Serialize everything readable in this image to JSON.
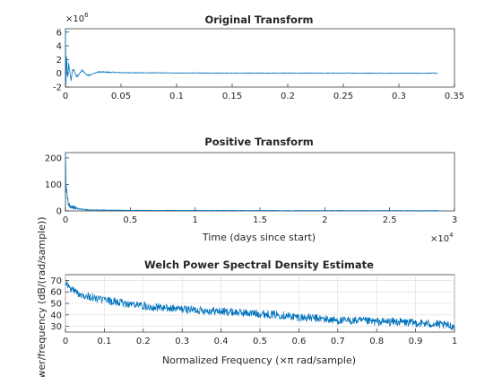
{
  "colors": {
    "line": "#0072BD",
    "axis": "#262626",
    "grid": "#dcdcdc"
  },
  "chart_data": [
    {
      "type": "line",
      "title": "Original Transform",
      "xlabel": "",
      "ylabel": "",
      "xlim": [
        0,
        0.35
      ],
      "ylim": [
        -2,
        6.5
      ],
      "xticks": [
        "0",
        "0.05",
        "0.1",
        "0.15",
        "0.2",
        "0.25",
        "0.3",
        "0.35"
      ],
      "yticks": [
        "-2",
        "0",
        "2",
        "4",
        "6"
      ],
      "ymultiplier": {
        "base": "×10",
        "exp": "6"
      },
      "grid": false,
      "series": [
        {
          "x": [
            0,
            0.0005,
            0.001,
            0.002,
            0.003,
            0.005,
            0.007,
            0.01,
            0.015,
            0.02,
            0.03,
            0.05,
            0.1,
            0.15,
            0.2,
            0.25,
            0.3,
            0.3348
          ],
          "y": [
            6.1,
            -1.9,
            2.0,
            -0.9,
            1.2,
            -0.8,
            0.7,
            -0.5,
            0.4,
            -0.3,
            0.2,
            0.1,
            0.05,
            0.04,
            0.03,
            0.03,
            0.02,
            0.02
          ]
        }
      ]
    },
    {
      "type": "line",
      "title": "Positive Transform",
      "xlabel": "Time (days since start)",
      "ylabel": "",
      "xlim": [
        0,
        30000
      ],
      "ylim": [
        0,
        220
      ],
      "xticks": [
        "0",
        "0.5",
        "1",
        "1.5",
        "2",
        "2.5",
        "3"
      ],
      "yticks": [
        "0",
        "100",
        "200"
      ],
      "xmultiplier": {
        "base": "×10",
        "exp": "4"
      },
      "grid": false,
      "series": [
        {
          "x": [
            0,
            40,
            80,
            150,
            250,
            400,
            700,
            1000,
            1500,
            2000,
            3000,
            5000,
            10000,
            15000,
            20000,
            25000,
            29000
          ],
          "y": [
            205,
            60,
            95,
            45,
            30,
            18,
            12,
            8,
            5,
            4,
            3,
            2,
            1.5,
            1.2,
            1,
            1,
            0.8
          ]
        }
      ]
    },
    {
      "type": "line",
      "title": "Welch Power Spectral Density Estimate",
      "xlabel": "Normalized Frequency  (×π rad/sample)",
      "ylabel": "Power/frequency (dB/(rad/sample))",
      "xlim": [
        0,
        1
      ],
      "ylim": [
        25,
        75
      ],
      "xticks": [
        "0",
        "0.1",
        "0.2",
        "0.3",
        "0.4",
        "0.5",
        "0.6",
        "0.7",
        "0.8",
        "0.9",
        "1"
      ],
      "yticks": [
        "30",
        "40",
        "50",
        "60",
        "70"
      ],
      "grid": true,
      "series": [
        {
          "x": [
            0,
            0.01,
            0.02,
            0.03,
            0.05,
            0.08,
            0.1,
            0.15,
            0.2,
            0.25,
            0.3,
            0.35,
            0.4,
            0.45,
            0.5,
            0.55,
            0.6,
            0.65,
            0.7,
            0.75,
            0.8,
            0.85,
            0.9,
            0.95,
            1.0
          ],
          "y": [
            70,
            63,
            62,
            59,
            57,
            54,
            53,
            50,
            48,
            46,
            45,
            44,
            43,
            42,
            41,
            40,
            38,
            37,
            35,
            35,
            34,
            34,
            33,
            32,
            30
          ]
        }
      ]
    }
  ]
}
